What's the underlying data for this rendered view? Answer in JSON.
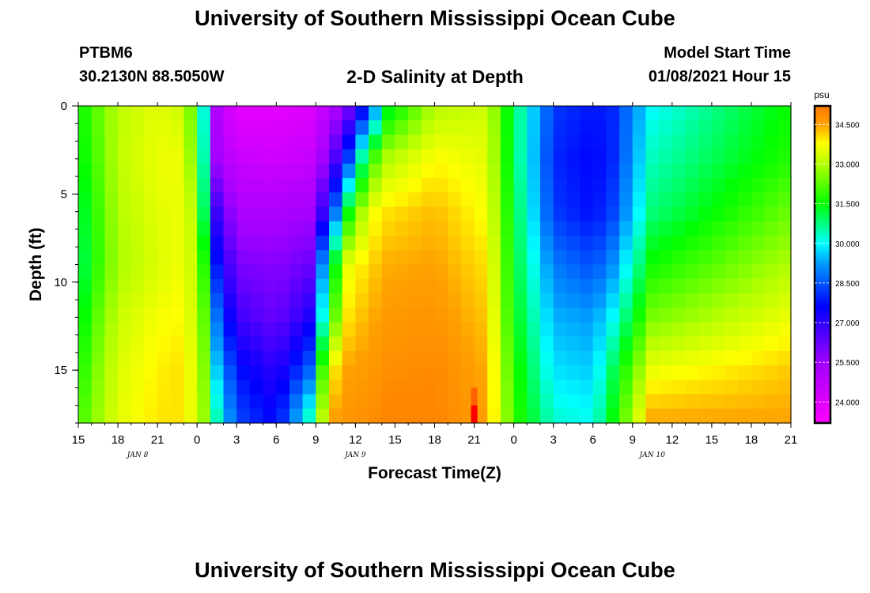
{
  "header": {
    "title": "University of Southern Mississippi Ocean Cube",
    "station": "PTBM6",
    "coordinates": "30.2130N 88.5050W",
    "plot_title": "2-D Salinity at Depth",
    "model_start_label": "Model Start Time",
    "model_start_value": "01/08/2021 Hour 15"
  },
  "footer": {
    "title": "University of Southern Mississippi Ocean Cube"
  },
  "chart_data": {
    "type": "heatmap",
    "title": "2-D Salinity at Depth",
    "xlabel": "Forecast Time(Z)",
    "ylabel": "Depth (ft)",
    "x_hours_from_start": [
      0,
      54
    ],
    "xlim": [
      0,
      54
    ],
    "ylim": [
      0,
      18
    ],
    "x_tick_labels": [
      "15",
      "18",
      "21",
      "0",
      "3",
      "6",
      "9",
      "12",
      "15",
      "18",
      "21",
      "0",
      "3",
      "6",
      "9",
      "12",
      "15",
      "18",
      "21"
    ],
    "x_tick_step_hours": 3,
    "date_labels": [
      {
        "text": "JAN 8",
        "hour": 4.5
      },
      {
        "text": "JAN 9",
        "hour": 21
      },
      {
        "text": "JAN 10",
        "hour": 43.5
      }
    ],
    "y_ticks": [
      0,
      5,
      10,
      15
    ],
    "colorbar": {
      "unit": "psu",
      "tick_labels": [
        "34.500",
        "33.000",
        "31.500",
        "30.000",
        "28.500",
        "27.000",
        "25.500",
        "24.000"
      ],
      "ticks": [
        34.5,
        33.0,
        31.5,
        30.0,
        28.5,
        27.0,
        25.5,
        24.0
      ],
      "range": [
        23.2,
        35.2
      ],
      "stops": [
        {
          "value": 23.2,
          "color": "#ff00ff"
        },
        {
          "value": 25.5,
          "color": "#a000ff"
        },
        {
          "value": 27.6,
          "color": "#0000ff"
        },
        {
          "value": 29.2,
          "color": "#0099ff"
        },
        {
          "value": 30.0,
          "color": "#00ffff"
        },
        {
          "value": 31.5,
          "color": "#00ff00"
        },
        {
          "value": 33.0,
          "color": "#b4ff00"
        },
        {
          "value": 33.8,
          "color": "#ffff00"
        },
        {
          "value": 34.5,
          "color": "#ffa000"
        },
        {
          "value": 35.2,
          "color": "#ff7800"
        }
      ]
    },
    "grid": {
      "columns": 54,
      "depths": [
        0,
        3,
        6,
        9,
        12,
        15,
        18
      ],
      "salinity_profiles_psu": [
        [
          31.5,
          31.3,
          31.0,
          30.8,
          31.2,
          31.6,
          32.0
        ],
        [
          32.3,
          32.2,
          32.0,
          31.9,
          32.3,
          32.6,
          32.8
        ],
        [
          33.1,
          33.1,
          33.0,
          32.9,
          33.2,
          33.4,
          33.5
        ],
        [
          33.5,
          33.6,
          33.5,
          33.4,
          33.7,
          33.9,
          34.0
        ],
        [
          33.3,
          33.6,
          33.6,
          33.6,
          33.8,
          34.0,
          34.0
        ],
        [
          32.5,
          32.8,
          33.2,
          33.3,
          33.4,
          33.6,
          33.6
        ],
        [
          30.2,
          30.5,
          31.0,
          31.8,
          32.3,
          32.6,
          32.8
        ],
        [
          25.0,
          25.4,
          26.8,
          27.8,
          28.8,
          29.6,
          30.5
        ],
        [
          23.8,
          24.5,
          25.2,
          26.0,
          26.8,
          27.8,
          28.4
        ],
        [
          23.8,
          24.4,
          25.2,
          25.8,
          26.2,
          27.0,
          27.6
        ],
        [
          24.0,
          24.6,
          25.4,
          26.2,
          27.2,
          28.6,
          30.5
        ],
        [
          24.8,
          25.8,
          27.5,
          30.5,
          31.6,
          33.8,
          34.5
        ],
        [
          26.0,
          28.3,
          31.5,
          33.6,
          34.0,
          34.5,
          34.7
        ],
        [
          28.0,
          31.8,
          33.6,
          34.1,
          34.4,
          34.6,
          34.8
        ],
        [
          31.2,
          33.0,
          34.0,
          34.4,
          34.6,
          34.8,
          35.0
        ],
        [
          33.0,
          33.8,
          34.3,
          34.5,
          34.7,
          34.9,
          35.0
        ],
        [
          33.3,
          33.5,
          33.7,
          34.0,
          34.2,
          34.4,
          34.5
        ],
        [
          31.0,
          31.0,
          31.2,
          31.3,
          31.5,
          31.8,
          32.0
        ],
        [
          28.2,
          28.0,
          28.2,
          28.9,
          29.4,
          29.8,
          30.3
        ],
        [
          27.8,
          27.6,
          27.7,
          28.4,
          29.2,
          29.6,
          30.1
        ],
        [
          28.0,
          28.0,
          28.3,
          29.1,
          30.0,
          31.0,
          31.5
        ],
        [
          30.0,
          30.4,
          30.8,
          31.6,
          32.5,
          33.6,
          34.5
        ],
        [
          31.6,
          31.8,
          32.4,
          33.0,
          33.6,
          34.2,
          34.5
        ]
      ],
      "profile_hours": [
        0,
        1.5,
        3,
        6,
        7.5,
        8.5,
        9.5,
        10.5,
        12,
        15,
        17.5,
        19,
        20.5,
        22,
        23.5,
        27,
        31,
        33,
        36,
        39,
        40.5,
        43.5,
        54
      ]
    },
    "annotations": [
      {
        "type": "spike",
        "hour": 30,
        "depth": 17.0,
        "value_psu": 35.4
      }
    ]
  }
}
